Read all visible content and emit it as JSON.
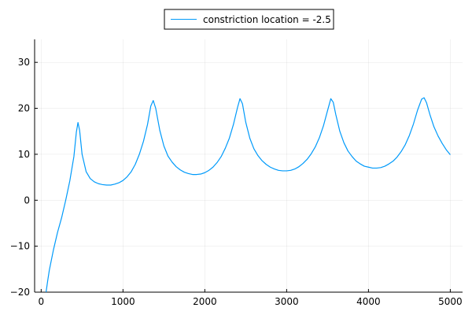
{
  "chart_data": {
    "type": "line",
    "title": "",
    "xlabel": "",
    "ylabel": "",
    "xlim": [
      -80,
      5150
    ],
    "ylim": [
      -20,
      35
    ],
    "xticks": [
      0,
      1000,
      2000,
      3000,
      4000,
      5000
    ],
    "yticks": [
      -20,
      -10,
      0,
      10,
      20,
      30
    ],
    "xtick_labels": [
      "0",
      "1000",
      "2000",
      "3000",
      "4000",
      "5000"
    ],
    "ytick_labels": [
      "−20",
      "−10",
      "0",
      "10",
      "20",
      "30"
    ],
    "grid": true,
    "legend_position": "top-center, outside plot area",
    "series": [
      {
        "name": "constriction location = -2.5",
        "color": "#009AFA",
        "points": [
          [
            60,
            -20
          ],
          [
            80,
            -17.5
          ],
          [
            100,
            -15.2
          ],
          [
            150,
            -10.8
          ],
          [
            200,
            -7.0
          ],
          [
            250,
            -3.8
          ],
          [
            300,
            0.0
          ],
          [
            350,
            4.2
          ],
          [
            400,
            9.5
          ],
          [
            430,
            14.8
          ],
          [
            450,
            16.9
          ],
          [
            470,
            15.2
          ],
          [
            500,
            10.0
          ],
          [
            550,
            6.2
          ],
          [
            600,
            4.7
          ],
          [
            650,
            4.0
          ],
          [
            700,
            3.6
          ],
          [
            750,
            3.4
          ],
          [
            800,
            3.3
          ],
          [
            850,
            3.3
          ],
          [
            900,
            3.5
          ],
          [
            950,
            3.8
          ],
          [
            1000,
            4.3
          ],
          [
            1050,
            5.1
          ],
          [
            1100,
            6.2
          ],
          [
            1150,
            7.8
          ],
          [
            1200,
            10.0
          ],
          [
            1250,
            12.8
          ],
          [
            1300,
            16.5
          ],
          [
            1340,
            20.5
          ],
          [
            1370,
            21.7
          ],
          [
            1400,
            20.0
          ],
          [
            1450,
            15.2
          ],
          [
            1500,
            11.8
          ],
          [
            1550,
            9.6
          ],
          [
            1600,
            8.3
          ],
          [
            1650,
            7.3
          ],
          [
            1700,
            6.6
          ],
          [
            1750,
            6.1
          ],
          [
            1800,
            5.8
          ],
          [
            1850,
            5.6
          ],
          [
            1900,
            5.6
          ],
          [
            1950,
            5.7
          ],
          [
            2000,
            6.0
          ],
          [
            2050,
            6.5
          ],
          [
            2100,
            7.2
          ],
          [
            2150,
            8.2
          ],
          [
            2200,
            9.5
          ],
          [
            2250,
            11.3
          ],
          [
            2300,
            13.5
          ],
          [
            2350,
            16.5
          ],
          [
            2400,
            20.2
          ],
          [
            2430,
            22.1
          ],
          [
            2460,
            21.0
          ],
          [
            2500,
            17.0
          ],
          [
            2550,
            13.5
          ],
          [
            2600,
            11.2
          ],
          [
            2650,
            9.7
          ],
          [
            2700,
            8.6
          ],
          [
            2750,
            7.8
          ],
          [
            2800,
            7.2
          ],
          [
            2850,
            6.8
          ],
          [
            2900,
            6.5
          ],
          [
            2950,
            6.4
          ],
          [
            3000,
            6.4
          ],
          [
            3050,
            6.5
          ],
          [
            3100,
            6.8
          ],
          [
            3150,
            7.3
          ],
          [
            3200,
            8.0
          ],
          [
            3250,
            8.9
          ],
          [
            3300,
            10.1
          ],
          [
            3350,
            11.6
          ],
          [
            3400,
            13.6
          ],
          [
            3450,
            16.2
          ],
          [
            3500,
            19.5
          ],
          [
            3540,
            22.1
          ],
          [
            3570,
            21.3
          ],
          [
            3600,
            18.7
          ],
          [
            3650,
            15.0
          ],
          [
            3700,
            12.5
          ],
          [
            3750,
            10.7
          ],
          [
            3800,
            9.5
          ],
          [
            3850,
            8.5
          ],
          [
            3900,
            7.9
          ],
          [
            3950,
            7.4
          ],
          [
            4000,
            7.2
          ],
          [
            4050,
            7.0
          ],
          [
            4100,
            7.0
          ],
          [
            4150,
            7.1
          ],
          [
            4200,
            7.4
          ],
          [
            4250,
            7.9
          ],
          [
            4300,
            8.5
          ],
          [
            4350,
            9.4
          ],
          [
            4400,
            10.6
          ],
          [
            4450,
            12.1
          ],
          [
            4500,
            14.1
          ],
          [
            4550,
            16.6
          ],
          [
            4600,
            19.6
          ],
          [
            4650,
            22.0
          ],
          [
            4680,
            22.3
          ],
          [
            4710,
            21.2
          ],
          [
            4750,
            18.7
          ],
          [
            4800,
            16.0
          ],
          [
            4850,
            14.0
          ],
          [
            4900,
            12.4
          ],
          [
            4950,
            11.0
          ],
          [
            5000,
            9.9
          ]
        ]
      }
    ]
  }
}
